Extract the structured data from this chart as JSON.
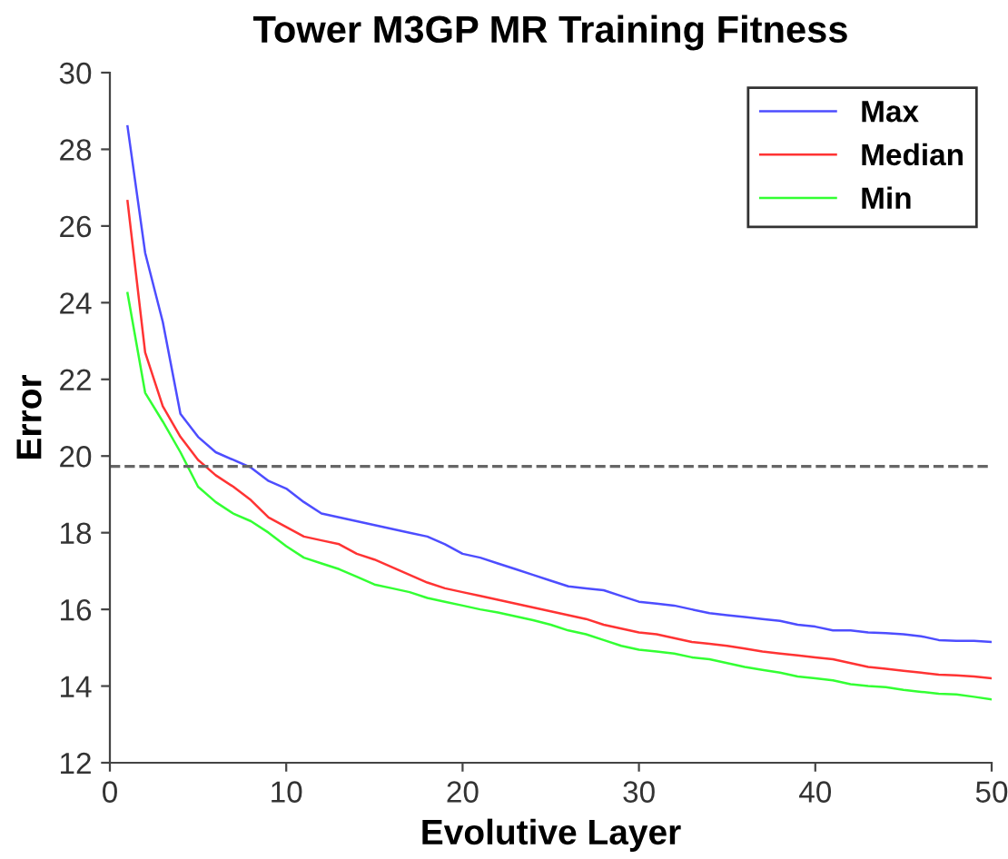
{
  "chart_data": {
    "type": "line",
    "title": "Tower M3GP MR Training Fitness",
    "xlabel": "Evolutive Layer",
    "ylabel": "Error",
    "x": [
      1,
      2,
      3,
      4,
      5,
      6,
      7,
      8,
      9,
      10,
      11,
      12,
      13,
      14,
      15,
      16,
      17,
      18,
      19,
      20,
      21,
      22,
      23,
      24,
      25,
      26,
      27,
      28,
      29,
      30,
      31,
      32,
      33,
      34,
      35,
      36,
      37,
      38,
      39,
      40,
      41,
      42,
      43,
      44,
      45,
      46,
      47,
      48,
      49,
      50
    ],
    "series": [
      {
        "name": "Max",
        "color": "#4d4dff",
        "values": [
          28.6,
          25.3,
          23.5,
          21.1,
          20.5,
          20.1,
          19.9,
          19.7,
          19.35,
          19.15,
          18.8,
          18.5,
          18.4,
          18.3,
          18.2,
          18.1,
          18.0,
          17.9,
          17.7,
          17.45,
          17.35,
          17.2,
          17.05,
          16.9,
          16.75,
          16.6,
          16.55,
          16.5,
          16.35,
          16.2,
          16.15,
          16.1,
          16.0,
          15.9,
          15.85,
          15.8,
          15.75,
          15.7,
          15.6,
          15.55,
          15.45,
          15.45,
          15.4,
          15.38,
          15.35,
          15.3,
          15.2,
          15.18,
          15.18,
          15.15
        ]
      },
      {
        "name": "Median",
        "color": "#ff3333",
        "values": [
          26.65,
          22.7,
          21.3,
          20.5,
          19.9,
          19.5,
          19.2,
          18.85,
          18.4,
          18.15,
          17.9,
          17.8,
          17.7,
          17.45,
          17.3,
          17.1,
          16.9,
          16.7,
          16.55,
          16.45,
          16.35,
          16.25,
          16.15,
          16.05,
          15.95,
          15.85,
          15.75,
          15.6,
          15.5,
          15.4,
          15.35,
          15.25,
          15.15,
          15.1,
          15.05,
          14.98,
          14.9,
          14.85,
          14.8,
          14.75,
          14.7,
          14.6,
          14.5,
          14.45,
          14.4,
          14.35,
          14.3,
          14.28,
          14.25,
          14.2
        ]
      },
      {
        "name": "Min",
        "color": "#33ff33",
        "values": [
          24.25,
          21.65,
          20.9,
          20.1,
          19.2,
          18.8,
          18.5,
          18.3,
          18.0,
          17.65,
          17.35,
          17.2,
          17.05,
          16.85,
          16.65,
          16.55,
          16.45,
          16.3,
          16.2,
          16.1,
          16.0,
          15.92,
          15.82,
          15.72,
          15.6,
          15.45,
          15.35,
          15.2,
          15.05,
          14.95,
          14.9,
          14.85,
          14.75,
          14.7,
          14.6,
          14.5,
          14.42,
          14.35,
          14.25,
          14.2,
          14.15,
          14.05,
          14.0,
          13.97,
          13.9,
          13.85,
          13.8,
          13.78,
          13.72,
          13.65
        ]
      }
    ],
    "ref_lines": [
      {
        "axis": "y",
        "value": 19.73,
        "color": "#666666",
        "line_style": "dashed"
      }
    ],
    "xlim": [
      0,
      50
    ],
    "ylim": [
      12,
      30
    ],
    "xticks": [
      0,
      10,
      20,
      30,
      40,
      50
    ],
    "yticks": [
      12,
      14,
      16,
      18,
      20,
      22,
      24,
      26,
      28,
      30
    ],
    "legend": "top right",
    "marker": "none",
    "line_style": "solid"
  }
}
